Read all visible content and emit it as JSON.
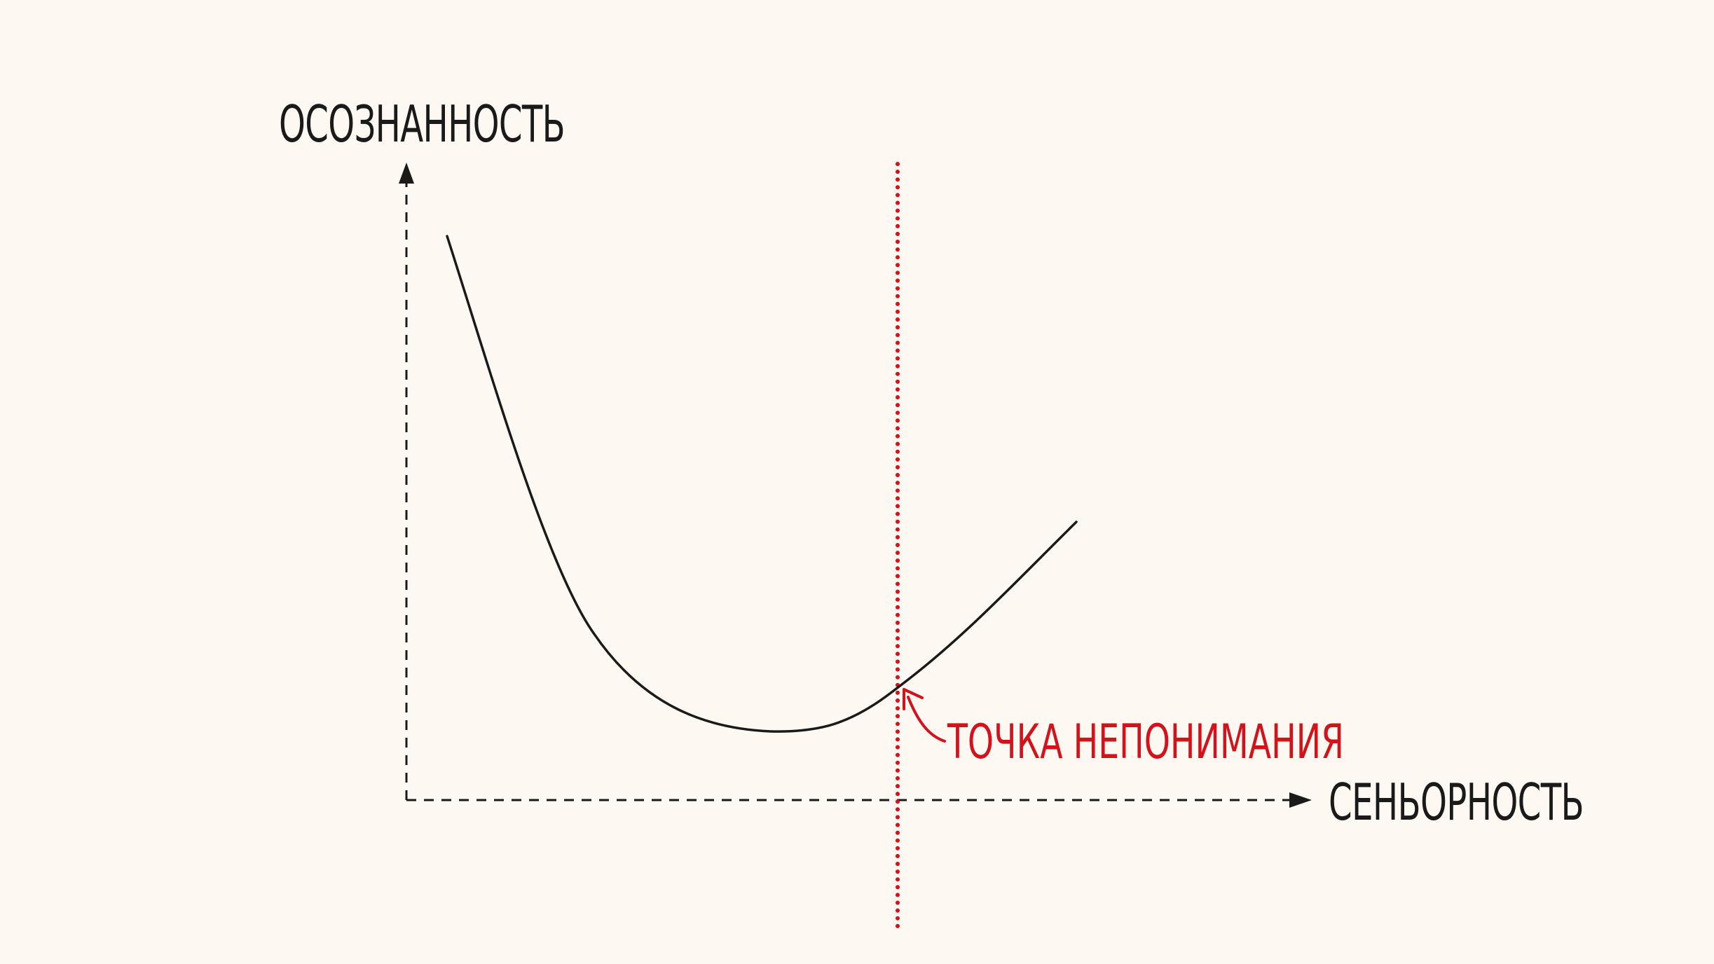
{
  "diagram": {
    "y_axis": {
      "label": "ОСОЗНАННОСТЬ"
    },
    "x_axis": {
      "label": "СЕНЬОРНОСТЬ"
    },
    "annotation": {
      "label": "ТОЧКА НЕПОНИМАНИЯ"
    }
  },
  "colors": {
    "background": "#FDF9F2",
    "ink": "#1A1A1A",
    "accent": "#D3131B"
  }
}
